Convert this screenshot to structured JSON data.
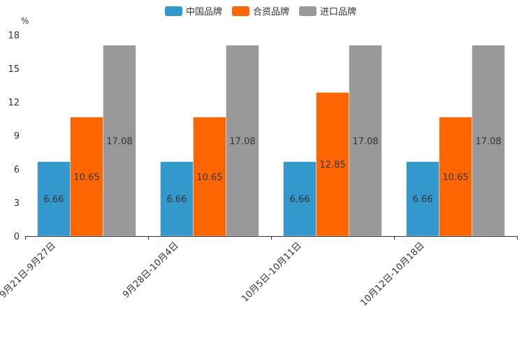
{
  "chart_data": {
    "type": "bar",
    "title": "",
    "xlabel": "",
    "ylabel": "%",
    "ylim": [
      0,
      18
    ],
    "yticks": [
      0,
      3,
      6,
      9,
      12,
      15,
      18
    ],
    "categories": [
      "9月21日-9月27日",
      "9月28日-10月4日",
      "10月5日-10月11日",
      "10月12日-10月18日"
    ],
    "series": [
      {
        "name": "中国品牌",
        "color": "#3399cc",
        "values": [
          6.66,
          6.66,
          6.66,
          6.66
        ]
      },
      {
        "name": "合资品牌",
        "color": "#ff6600",
        "values": [
          10.65,
          10.65,
          12.85,
          10.65
        ]
      },
      {
        "name": "进口品牌",
        "color": "#999999",
        "values": [
          17.08,
          17.08,
          17.08,
          17.08
        ]
      }
    ],
    "legend_position": "top-center",
    "grid": false
  }
}
